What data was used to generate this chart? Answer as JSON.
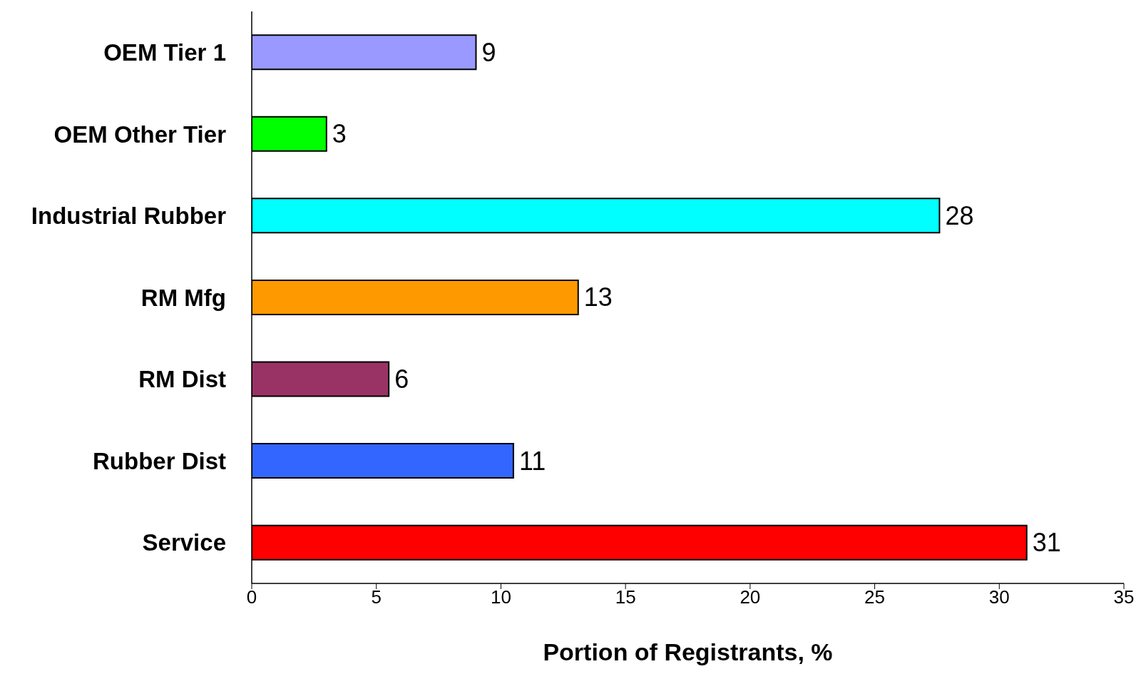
{
  "chart_data": {
    "type": "bar",
    "orientation": "horizontal",
    "xlabel": "Portion of Registrants, %",
    "categories": [
      "OEM Tier 1",
      "OEM Other Tier",
      "Industrial Rubber",
      "RM Mfg",
      "RM Dist",
      "Rubber Dist",
      "Service"
    ],
    "values": [
      9,
      3,
      27.6,
      13.1,
      5.5,
      10.5,
      31.1
    ],
    "value_labels": [
      "9",
      "3",
      "28",
      "13",
      "6",
      "11",
      "31"
    ],
    "colors": [
      "#9999ff",
      "#00ff00",
      "#00ffff",
      "#ff9900",
      "#993366",
      "#3366ff",
      "#ff0000"
    ],
    "xlim": [
      0,
      35
    ],
    "xticks": [
      0,
      5,
      10,
      15,
      20,
      25,
      30,
      35
    ],
    "grid": false
  }
}
